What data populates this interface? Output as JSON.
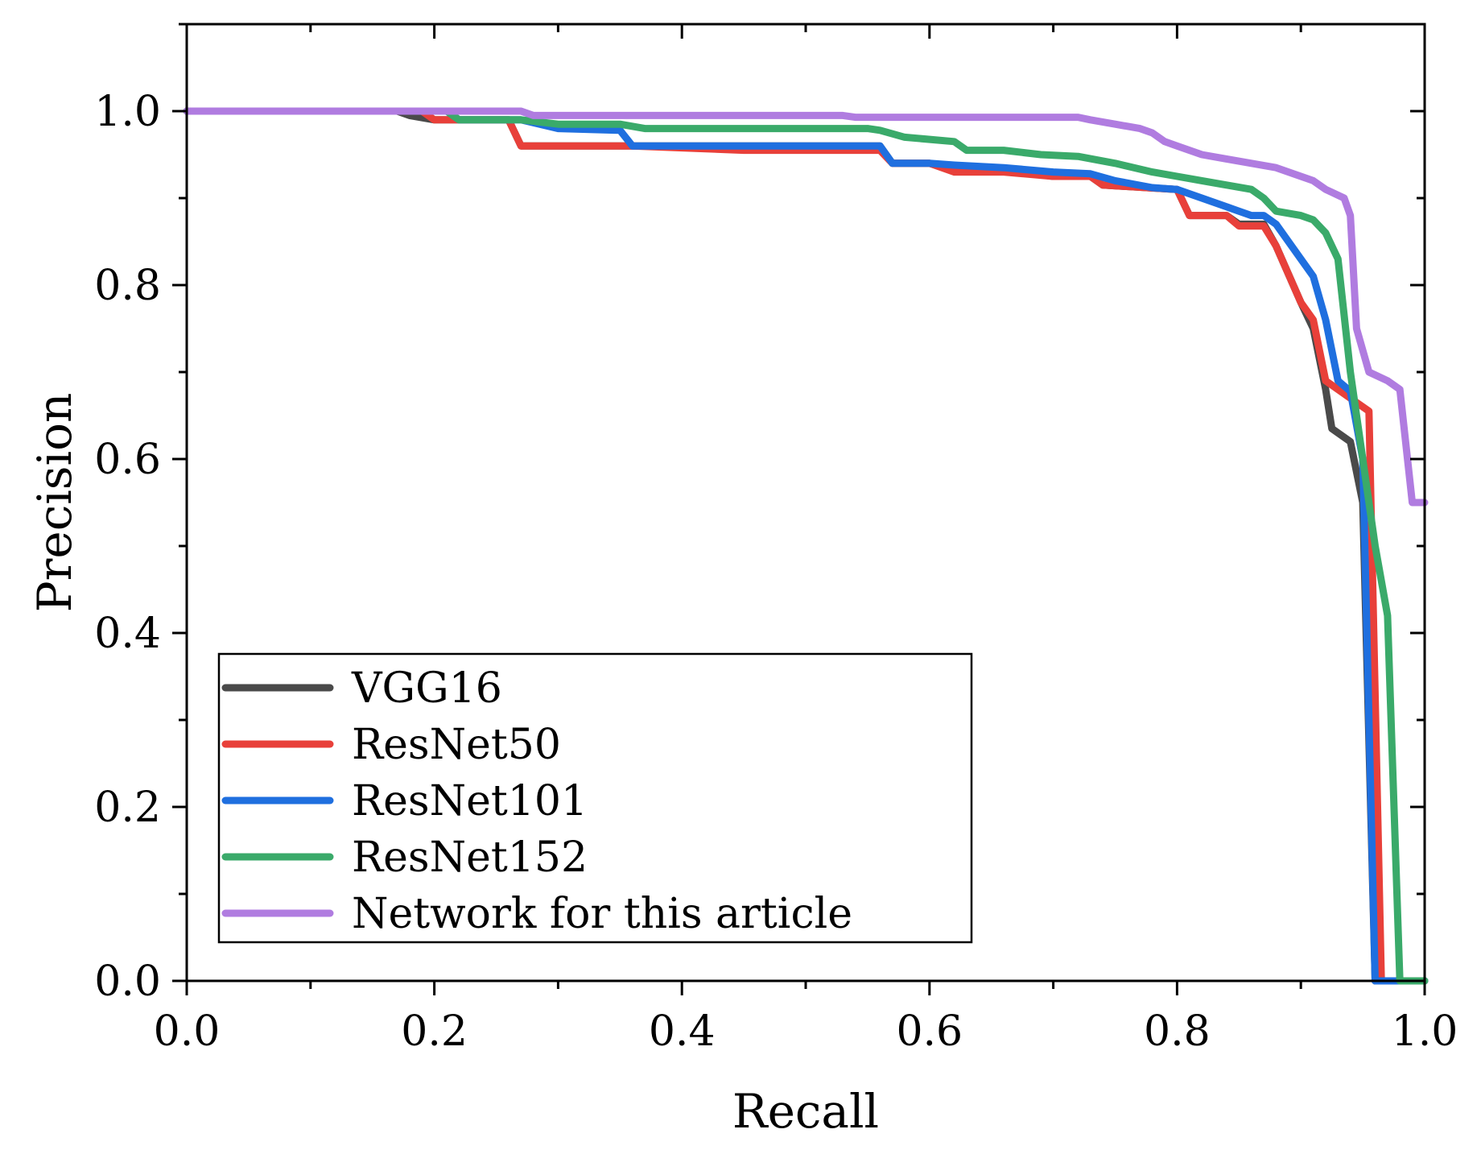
{
  "chart_data": {
    "type": "line",
    "title": "",
    "xlabel": "Recall",
    "ylabel": "Precision",
    "xlim": [
      0.0,
      1.0
    ],
    "ylim": [
      0.0,
      1.1
    ],
    "x_ticks": [
      0.0,
      0.2,
      0.4,
      0.6,
      0.8,
      1.0
    ],
    "x_tick_labels": [
      "0.0",
      "0.2",
      "0.4",
      "0.6",
      "0.8",
      "1.0"
    ],
    "y_ticks": [
      0.0,
      0.2,
      0.4,
      0.6,
      0.8,
      1.0
    ],
    "y_tick_labels": [
      "0.0",
      "0.2",
      "0.4",
      "0.6",
      "0.8",
      "1.0"
    ],
    "grid": false,
    "legend_position": "bottom-left",
    "series": [
      {
        "name": "VGG16",
        "color": "#4a4a4a",
        "points": [
          [
            0.0,
            1.0
          ],
          [
            0.17,
            1.0
          ],
          [
            0.18,
            0.995
          ],
          [
            0.2,
            0.99
          ],
          [
            0.26,
            0.99
          ],
          [
            0.27,
            0.96
          ],
          [
            0.35,
            0.96
          ],
          [
            0.36,
            0.96
          ],
          [
            0.56,
            0.96
          ],
          [
            0.57,
            0.94
          ],
          [
            0.6,
            0.94
          ],
          [
            0.62,
            0.932
          ],
          [
            0.66,
            0.932
          ],
          [
            0.7,
            0.925
          ],
          [
            0.73,
            0.925
          ],
          [
            0.74,
            0.915
          ],
          [
            0.8,
            0.91
          ],
          [
            0.81,
            0.88
          ],
          [
            0.84,
            0.88
          ],
          [
            0.85,
            0.87
          ],
          [
            0.87,
            0.87
          ],
          [
            0.88,
            0.845
          ],
          [
            0.9,
            0.78
          ],
          [
            0.91,
            0.75
          ],
          [
            0.92,
            0.68
          ],
          [
            0.925,
            0.635
          ],
          [
            0.94,
            0.62
          ],
          [
            0.95,
            0.55
          ],
          [
            0.96,
            0.0
          ],
          [
            1.0,
            0.0
          ]
        ]
      },
      {
        "name": "ResNet50",
        "color": "#e8403a",
        "points": [
          [
            0.0,
            1.0
          ],
          [
            0.19,
            1.0
          ],
          [
            0.2,
            0.99
          ],
          [
            0.22,
            0.99
          ],
          [
            0.26,
            0.99
          ],
          [
            0.27,
            0.96
          ],
          [
            0.35,
            0.96
          ],
          [
            0.36,
            0.96
          ],
          [
            0.45,
            0.955
          ],
          [
            0.56,
            0.955
          ],
          [
            0.57,
            0.94
          ],
          [
            0.6,
            0.94
          ],
          [
            0.62,
            0.93
          ],
          [
            0.66,
            0.93
          ],
          [
            0.7,
            0.925
          ],
          [
            0.73,
            0.925
          ],
          [
            0.74,
            0.915
          ],
          [
            0.8,
            0.91
          ],
          [
            0.81,
            0.88
          ],
          [
            0.84,
            0.88
          ],
          [
            0.85,
            0.868
          ],
          [
            0.87,
            0.868
          ],
          [
            0.88,
            0.845
          ],
          [
            0.9,
            0.78
          ],
          [
            0.91,
            0.76
          ],
          [
            0.92,
            0.69
          ],
          [
            0.94,
            0.67
          ],
          [
            0.955,
            0.655
          ],
          [
            0.965,
            0.0
          ],
          [
            1.0,
            0.0
          ]
        ]
      },
      {
        "name": "ResNet101",
        "color": "#1f6fdf",
        "points": [
          [
            0.0,
            1.0
          ],
          [
            0.21,
            1.0
          ],
          [
            0.22,
            0.99
          ],
          [
            0.27,
            0.99
          ],
          [
            0.3,
            0.98
          ],
          [
            0.35,
            0.978
          ],
          [
            0.36,
            0.96
          ],
          [
            0.56,
            0.96
          ],
          [
            0.57,
            0.94
          ],
          [
            0.6,
            0.94
          ],
          [
            0.62,
            0.938
          ],
          [
            0.66,
            0.935
          ],
          [
            0.7,
            0.93
          ],
          [
            0.73,
            0.928
          ],
          [
            0.75,
            0.92
          ],
          [
            0.78,
            0.912
          ],
          [
            0.8,
            0.91
          ],
          [
            0.82,
            0.9
          ],
          [
            0.84,
            0.89
          ],
          [
            0.85,
            0.885
          ],
          [
            0.86,
            0.88
          ],
          [
            0.87,
            0.88
          ],
          [
            0.88,
            0.87
          ],
          [
            0.9,
            0.83
          ],
          [
            0.91,
            0.81
          ],
          [
            0.92,
            0.76
          ],
          [
            0.93,
            0.69
          ],
          [
            0.94,
            0.678
          ],
          [
            0.95,
            0.6
          ],
          [
            0.96,
            0.0
          ],
          [
            1.0,
            0.0
          ]
        ]
      },
      {
        "name": "ResNet152",
        "color": "#3aaa6a",
        "points": [
          [
            0.0,
            1.0
          ],
          [
            0.21,
            1.0
          ],
          [
            0.22,
            0.99
          ],
          [
            0.27,
            0.99
          ],
          [
            0.3,
            0.985
          ],
          [
            0.35,
            0.985
          ],
          [
            0.37,
            0.98
          ],
          [
            0.55,
            0.98
          ],
          [
            0.56,
            0.978
          ],
          [
            0.58,
            0.97
          ],
          [
            0.62,
            0.965
          ],
          [
            0.63,
            0.955
          ],
          [
            0.66,
            0.955
          ],
          [
            0.69,
            0.95
          ],
          [
            0.72,
            0.948
          ],
          [
            0.75,
            0.94
          ],
          [
            0.78,
            0.93
          ],
          [
            0.8,
            0.925
          ],
          [
            0.82,
            0.92
          ],
          [
            0.84,
            0.915
          ],
          [
            0.86,
            0.91
          ],
          [
            0.87,
            0.9
          ],
          [
            0.88,
            0.885
          ],
          [
            0.9,
            0.88
          ],
          [
            0.91,
            0.875
          ],
          [
            0.92,
            0.86
          ],
          [
            0.93,
            0.83
          ],
          [
            0.94,
            0.7
          ],
          [
            0.95,
            0.6
          ],
          [
            0.96,
            0.5
          ],
          [
            0.97,
            0.42
          ],
          [
            0.98,
            0.0
          ],
          [
            1.0,
            0.0
          ]
        ]
      },
      {
        "name": "Network for this article",
        "color": "#b07ce0",
        "points": [
          [
            0.0,
            1.0
          ],
          [
            0.27,
            1.0
          ],
          [
            0.28,
            0.995
          ],
          [
            0.53,
            0.995
          ],
          [
            0.54,
            0.993
          ],
          [
            0.72,
            0.993
          ],
          [
            0.73,
            0.99
          ],
          [
            0.75,
            0.985
          ],
          [
            0.77,
            0.98
          ],
          [
            0.78,
            0.975
          ],
          [
            0.79,
            0.965
          ],
          [
            0.8,
            0.96
          ],
          [
            0.81,
            0.955
          ],
          [
            0.82,
            0.95
          ],
          [
            0.84,
            0.945
          ],
          [
            0.86,
            0.94
          ],
          [
            0.88,
            0.935
          ],
          [
            0.9,
            0.925
          ],
          [
            0.91,
            0.92
          ],
          [
            0.92,
            0.91
          ],
          [
            0.935,
            0.9
          ],
          [
            0.94,
            0.88
          ],
          [
            0.945,
            0.75
          ],
          [
            0.955,
            0.7
          ],
          [
            0.97,
            0.69
          ],
          [
            0.98,
            0.68
          ],
          [
            0.99,
            0.55
          ],
          [
            1.0,
            0.55
          ]
        ]
      }
    ]
  }
}
